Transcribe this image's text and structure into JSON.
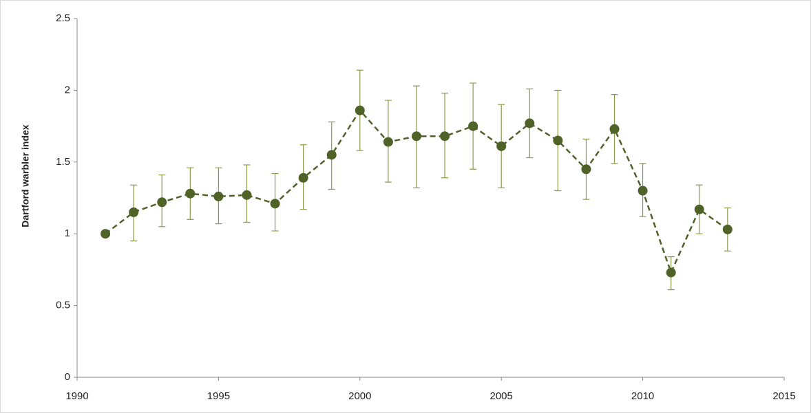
{
  "chart_data": {
    "type": "line",
    "y_label": "Dartford warbler index",
    "x": [
      1991,
      1992,
      1993,
      1994,
      1995,
      1996,
      1997,
      1998,
      1999,
      2000,
      2001,
      2002,
      2003,
      2004,
      2005,
      2006,
      2007,
      2008,
      2009,
      2010,
      2011,
      2012,
      2013
    ],
    "series": [
      {
        "color": "#4f6228",
        "error_color": "#8a9a4a",
        "values": [
          1.0,
          1.15,
          1.22,
          1.28,
          1.26,
          1.27,
          1.21,
          1.39,
          1.55,
          1.86,
          1.64,
          1.68,
          1.68,
          1.75,
          1.61,
          1.77,
          1.65,
          1.45,
          1.73,
          1.3,
          0.73,
          1.17,
          1.03
        ],
        "lower": [
          null,
          0.95,
          1.05,
          1.1,
          1.07,
          1.08,
          1.02,
          1.17,
          1.31,
          1.58,
          1.36,
          1.32,
          1.39,
          1.45,
          1.32,
          1.53,
          1.3,
          1.24,
          1.49,
          1.12,
          0.61,
          1.0,
          0.88
        ],
        "upper": [
          null,
          1.34,
          1.41,
          1.46,
          1.46,
          1.48,
          1.42,
          1.62,
          1.78,
          2.14,
          1.93,
          2.03,
          1.98,
          2.05,
          1.9,
          2.01,
          2.0,
          1.66,
          1.97,
          1.49,
          0.84,
          1.34,
          1.18
        ]
      }
    ],
    "xlim": [
      1990,
      2015
    ],
    "xticks": [
      1990,
      1995,
      2000,
      2005,
      2010,
      2015
    ],
    "ylim": [
      0,
      2.5
    ],
    "yticks": [
      0,
      0.5,
      1,
      1.5,
      2,
      2.5
    ],
    "line_style": "dashed",
    "grid": false
  }
}
